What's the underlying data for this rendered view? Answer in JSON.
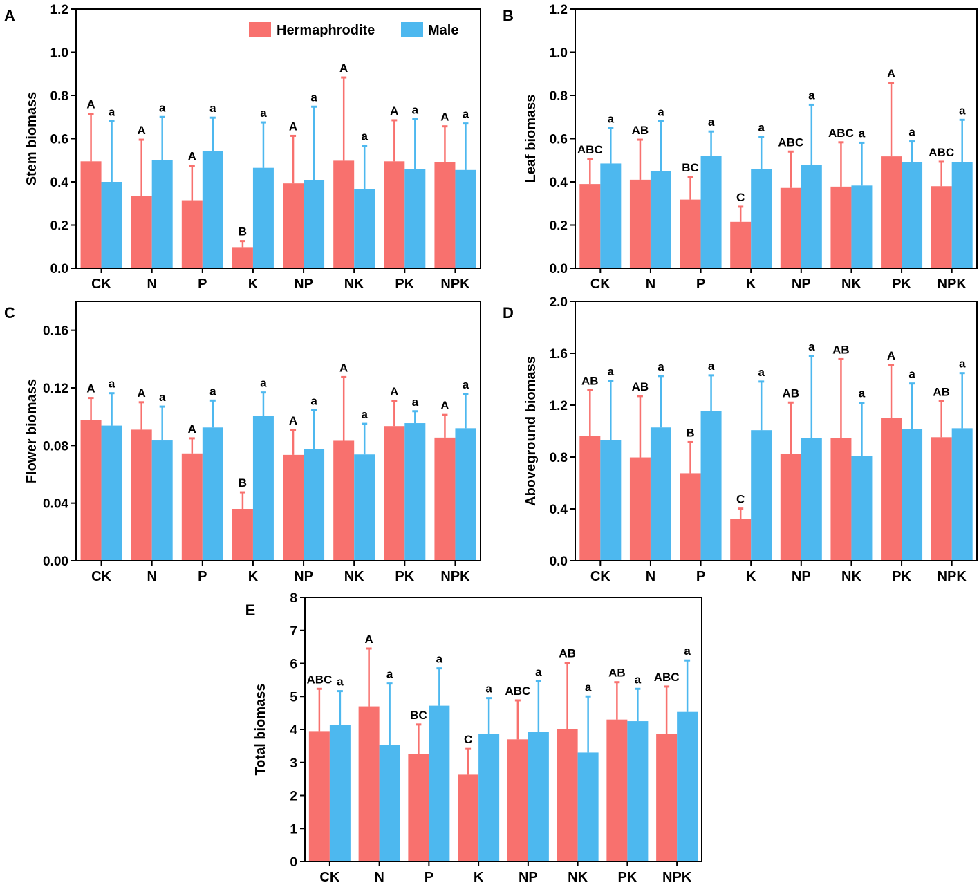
{
  "colors": {
    "hermaphrodite": "#F8716E",
    "male": "#4DB8EF",
    "axis": "#000000"
  },
  "legend": {
    "hermaphrodite_label": "Hermaphrodite",
    "male_label": "Male"
  },
  "chart_data": [
    {
      "panel": "A",
      "type": "bar",
      "title": "",
      "xlabel": "",
      "ylabel": "Stem biomass",
      "categories": [
        "CK",
        "N",
        "P",
        "K",
        "NP",
        "NK",
        "PK",
        "NPK"
      ],
      "ylim": [
        0,
        1.2
      ],
      "ticks": [
        0.0,
        0.2,
        0.4,
        0.6,
        0.8,
        1.0,
        1.2
      ],
      "tick_labels": [
        "0.0",
        "0.2",
        "0.4",
        "0.6",
        "0.8",
        "1.0",
        "1.2"
      ],
      "legend_position": "top-right",
      "series": [
        {
          "name": "Hermaphrodite",
          "values": [
            0.495,
            0.335,
            0.315,
            0.098,
            0.393,
            0.498,
            0.495,
            0.492
          ],
          "error": [
            0.22,
            0.26,
            0.16,
            0.028,
            0.22,
            0.385,
            0.19,
            0.165
          ],
          "letters": [
            "A",
            "A",
            "A",
            "B",
            "A",
            "A",
            "A",
            "A"
          ]
        },
        {
          "name": "Male",
          "values": [
            0.4,
            0.5,
            0.542,
            0.465,
            0.408,
            0.368,
            0.46,
            0.455
          ],
          "error": [
            0.28,
            0.2,
            0.155,
            0.21,
            0.34,
            0.2,
            0.23,
            0.215
          ],
          "letters": [
            "a",
            "a",
            "a",
            "a",
            "a",
            "a",
            "a",
            "a"
          ]
        }
      ]
    },
    {
      "panel": "B",
      "type": "bar",
      "title": "",
      "xlabel": "",
      "ylabel": "Leaf biomass",
      "categories": [
        "CK",
        "N",
        "P",
        "K",
        "NP",
        "NK",
        "PK",
        "NPK"
      ],
      "ylim": [
        0,
        1.2
      ],
      "ticks": [
        0.0,
        0.2,
        0.4,
        0.6,
        0.8,
        1.0,
        1.2
      ],
      "tick_labels": [
        "0.0",
        "0.2",
        "0.4",
        "0.6",
        "0.8",
        "1.0",
        "1.2"
      ],
      "series": [
        {
          "name": "Hermaphrodite",
          "values": [
            0.39,
            0.41,
            0.318,
            0.215,
            0.372,
            0.378,
            0.518,
            0.38
          ],
          "error": [
            0.115,
            0.185,
            0.105,
            0.07,
            0.168,
            0.205,
            0.34,
            0.113
          ],
          "letters": [
            "ABC",
            "AB",
            "BC",
            "C",
            "ABC",
            "ABC",
            "A",
            "ABC"
          ]
        },
        {
          "name": "Male",
          "values": [
            0.485,
            0.45,
            0.52,
            0.46,
            0.48,
            0.383,
            0.49,
            0.492
          ],
          "error": [
            0.163,
            0.23,
            0.113,
            0.148,
            0.277,
            0.198,
            0.097,
            0.195
          ],
          "letters": [
            "a",
            "a",
            "a",
            "a",
            "a",
            "a",
            "a",
            "a"
          ]
        }
      ]
    },
    {
      "panel": "C",
      "type": "bar",
      "title": "",
      "xlabel": "",
      "ylabel": "Flower biomass",
      "categories": [
        "CK",
        "N",
        "P",
        "K",
        "NP",
        "NK",
        "PK",
        "NPK"
      ],
      "ylim": [
        0,
        0.18
      ],
      "ticks": [
        0.0,
        0.04,
        0.08,
        0.12,
        0.16
      ],
      "tick_labels": [
        "0.00",
        "0.04",
        "0.08",
        "0.12",
        "0.16"
      ],
      "series": [
        {
          "name": "Hermaphrodite",
          "values": [
            0.0975,
            0.091,
            0.0745,
            0.036,
            0.0735,
            0.0833,
            0.0935,
            0.0855
          ],
          "error": [
            0.0155,
            0.019,
            0.0105,
            0.0115,
            0.0172,
            0.0442,
            0.0175,
            0.0157
          ],
          "letters": [
            "A",
            "A",
            "A",
            "B",
            "A",
            "A",
            "A",
            "A"
          ]
        },
        {
          "name": "Male",
          "values": [
            0.0938,
            0.0835,
            0.0925,
            0.1005,
            0.0775,
            0.0738,
            0.0955,
            0.092
          ],
          "error": [
            0.0225,
            0.0235,
            0.0187,
            0.0163,
            0.027,
            0.0212,
            0.0083,
            0.0238
          ],
          "letters": [
            "a",
            "a",
            "a",
            "a",
            "a",
            "a",
            "a",
            "a"
          ]
        }
      ]
    },
    {
      "panel": "D",
      "type": "bar",
      "title": "",
      "xlabel": "",
      "ylabel": "Aboveground biomass",
      "categories": [
        "CK",
        "N",
        "P",
        "K",
        "NP",
        "NK",
        "PK",
        "NPK"
      ],
      "ylim": [
        0,
        2.0
      ],
      "ticks": [
        0.0,
        0.4,
        0.8,
        1.2,
        1.6,
        2.0
      ],
      "tick_labels": [
        "0.0",
        "0.4",
        "0.8",
        "1.2",
        "1.6",
        "2.0"
      ],
      "series": [
        {
          "name": "Hermaphrodite",
          "values": [
            0.963,
            0.797,
            0.675,
            0.32,
            0.825,
            0.945,
            1.1,
            0.953
          ],
          "error": [
            0.352,
            0.473,
            0.24,
            0.082,
            0.395,
            0.61,
            0.41,
            0.277
          ],
          "letters": [
            "AB",
            "AB",
            "B",
            "C",
            "AB",
            "AB",
            "A",
            "AB"
          ]
        },
        {
          "name": "Male",
          "values": [
            0.933,
            1.028,
            1.152,
            1.007,
            0.945,
            0.81,
            1.017,
            1.022
          ],
          "error": [
            0.455,
            0.397,
            0.278,
            0.375,
            0.635,
            0.408,
            0.35,
            0.425
          ],
          "letters": [
            "a",
            "a",
            "a",
            "a",
            "a",
            "a",
            "a",
            "a"
          ]
        }
      ]
    },
    {
      "panel": "E",
      "type": "bar",
      "title": "",
      "xlabel": "",
      "ylabel": "Total biomass",
      "categories": [
        "CK",
        "N",
        "P",
        "K",
        "NP",
        "NK",
        "PK",
        "NPK"
      ],
      "ylim": [
        0,
        8
      ],
      "ticks": [
        0,
        1,
        2,
        3,
        4,
        5,
        6,
        7,
        8
      ],
      "tick_labels": [
        "0",
        "1",
        "2",
        "3",
        "4",
        "5",
        "6",
        "7",
        "8"
      ],
      "series": [
        {
          "name": "Hermaphrodite",
          "values": [
            3.95,
            4.7,
            3.25,
            2.63,
            3.7,
            4.02,
            4.3,
            3.87
          ],
          "error": [
            1.28,
            1.75,
            0.9,
            0.78,
            1.18,
            2.0,
            1.13,
            1.43
          ],
          "letters": [
            "ABC",
            "A",
            "BC",
            "C",
            "ABC",
            "AB",
            "AB",
            "ABC"
          ]
        },
        {
          "name": "Male",
          "values": [
            4.13,
            3.53,
            4.72,
            3.87,
            3.93,
            3.3,
            4.25,
            4.53
          ],
          "error": [
            1.03,
            1.86,
            1.13,
            1.08,
            1.53,
            1.7,
            0.98,
            1.56
          ],
          "letters": [
            "a",
            "a",
            "a",
            "a",
            "a",
            "a",
            "a",
            "a"
          ]
        }
      ]
    }
  ]
}
